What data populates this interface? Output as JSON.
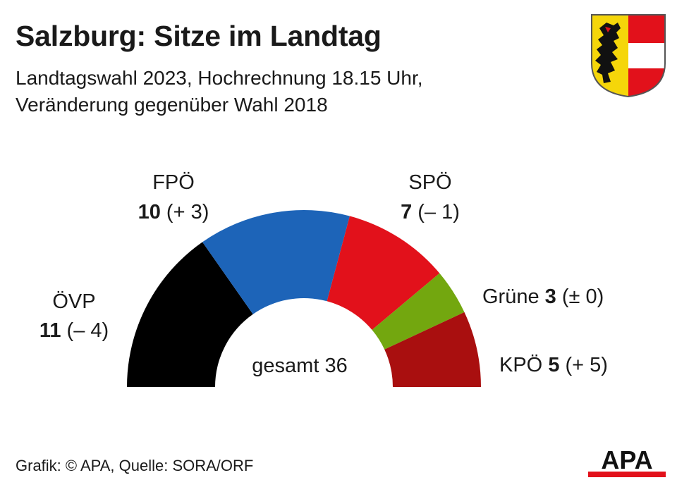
{
  "header": {
    "title": "Salzburg: Sitze im Landtag",
    "subtitle_line1": "Landtagswahl 2023, Hochrechnung 18.15 Uhr,",
    "subtitle_line2": "Veränderung gegenüber Wahl 2018"
  },
  "footer": {
    "source": "Grafik: © APA, Quelle: SORA/ORF",
    "logo_text": "APA"
  },
  "chart_data": {
    "type": "pie",
    "variant": "semicircle-parliament",
    "title": "Salzburg: Sitze im Landtag",
    "subtitle": "Landtagswahl 2023, Hochrechnung 18.15 Uhr, Veränderung gegenüber Wahl 2018",
    "total_label": "gesamt 36",
    "total": 36,
    "parties": [
      {
        "name": "ÖVP",
        "seats": 11,
        "change": "(– 4)",
        "color": "#000000"
      },
      {
        "name": "FPÖ",
        "seats": 10,
        "change": "(+ 3)",
        "color": "#1d64b8"
      },
      {
        "name": "SPÖ",
        "seats": 7,
        "change": "(– 1)",
        "color": "#e2111b"
      },
      {
        "name": "Grüne",
        "seats": 3,
        "change": "(± 0)",
        "color": "#73a70f"
      },
      {
        "name": "KPÖ",
        "seats": 5,
        "change": "(+ 5)",
        "color": "#a90f0f"
      }
    ]
  },
  "colors": {
    "crest_yellow": "#f5d60a",
    "crest_red": "#e2111b",
    "logo_red": "#e2111b"
  }
}
